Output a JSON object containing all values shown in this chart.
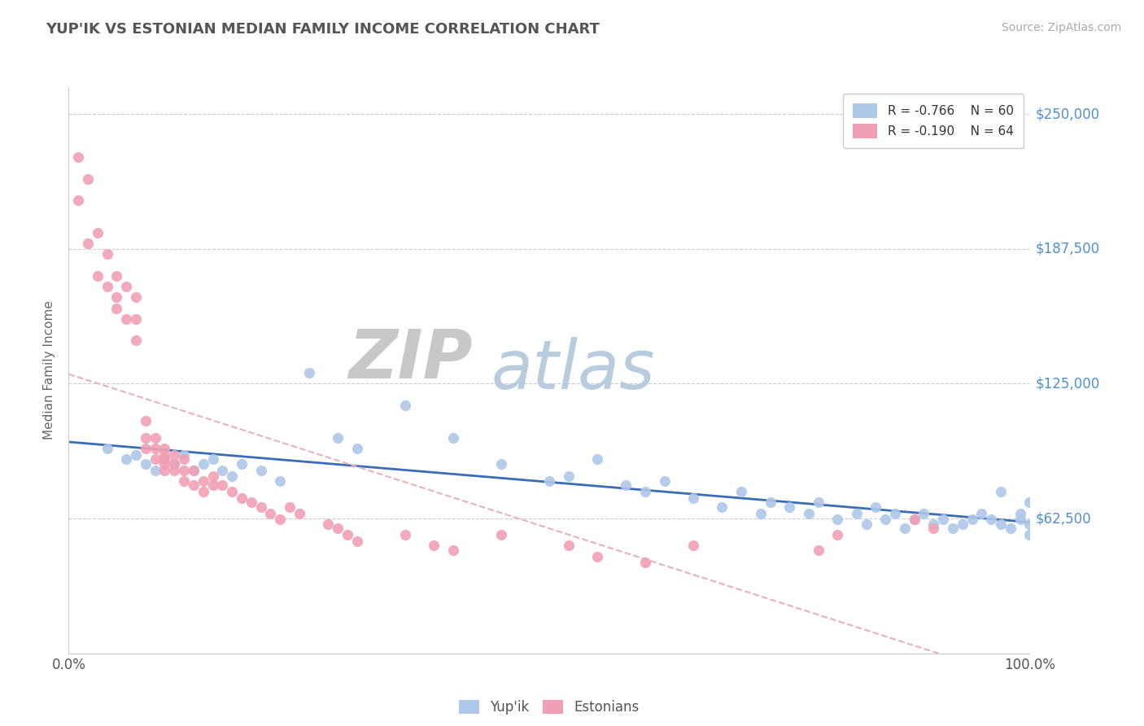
{
  "title": "YUP'IK VS ESTONIAN MEDIAN FAMILY INCOME CORRELATION CHART",
  "source": "Source: ZipAtlas.com",
  "ylabel": "Median Family Income",
  "xlim": [
    0,
    1.0
  ],
  "ylim": [
    0,
    262500
  ],
  "yticks": [
    62500,
    125000,
    187500,
    250000
  ],
  "ytick_labels": [
    "$62,500",
    "$125,000",
    "$187,500",
    "$250,000"
  ],
  "legend_r1": "R = -0.766",
  "legend_n1": "N = 60",
  "legend_r2": "R = -0.190",
  "legend_n2": "N = 64",
  "color_yupik": "#adc8e8",
  "color_estonian": "#f0a0b4",
  "color_trend_yupik": "#3a6db5",
  "color_trend_estonian": "#e8b0c0",
  "color_title": "#555555",
  "color_ytick": "#5090d0",
  "color_source": "#aaaaaa",
  "color_grid": "#cccccc",
  "watermark_zip": "#c8c8c8",
  "watermark_atlas": "#b8cce0",
  "yupik_x": [
    0.04,
    0.06,
    0.07,
    0.08,
    0.09,
    0.1,
    0.11,
    0.12,
    0.13,
    0.14,
    0.15,
    0.16,
    0.17,
    0.18,
    0.2,
    0.22,
    0.25,
    0.28,
    0.3,
    0.35,
    0.4,
    0.45,
    0.5,
    0.52,
    0.55,
    0.58,
    0.6,
    0.62,
    0.65,
    0.68,
    0.7,
    0.72,
    0.73,
    0.75,
    0.77,
    0.78,
    0.8,
    0.82,
    0.83,
    0.84,
    0.85,
    0.86,
    0.87,
    0.88,
    0.89,
    0.9,
    0.91,
    0.92,
    0.93,
    0.94,
    0.95,
    0.96,
    0.97,
    0.98,
    0.99,
    1.0,
    1.0,
    1.0,
    0.99,
    0.97
  ],
  "yupik_y": [
    95000,
    90000,
    92000,
    88000,
    85000,
    90000,
    88000,
    92000,
    85000,
    88000,
    90000,
    85000,
    82000,
    88000,
    85000,
    80000,
    130000,
    100000,
    95000,
    115000,
    100000,
    88000,
    80000,
    82000,
    90000,
    78000,
    75000,
    80000,
    72000,
    68000,
    75000,
    65000,
    70000,
    68000,
    65000,
    70000,
    62000,
    65000,
    60000,
    68000,
    62000,
    65000,
    58000,
    62000,
    65000,
    60000,
    62000,
    58000,
    60000,
    62000,
    65000,
    62000,
    60000,
    58000,
    62000,
    55000,
    60000,
    70000,
    65000,
    75000
  ],
  "estonian_x": [
    0.01,
    0.01,
    0.02,
    0.02,
    0.03,
    0.03,
    0.04,
    0.04,
    0.05,
    0.05,
    0.05,
    0.06,
    0.06,
    0.07,
    0.07,
    0.07,
    0.08,
    0.08,
    0.08,
    0.09,
    0.09,
    0.09,
    0.1,
    0.1,
    0.1,
    0.1,
    0.1,
    0.11,
    0.11,
    0.11,
    0.12,
    0.12,
    0.12,
    0.13,
    0.13,
    0.14,
    0.14,
    0.15,
    0.15,
    0.16,
    0.17,
    0.18,
    0.19,
    0.2,
    0.21,
    0.22,
    0.23,
    0.24,
    0.27,
    0.28,
    0.29,
    0.3,
    0.35,
    0.38,
    0.4,
    0.45,
    0.52,
    0.55,
    0.6,
    0.65,
    0.78,
    0.8,
    0.88,
    0.9
  ],
  "estonian_y": [
    230000,
    210000,
    190000,
    220000,
    175000,
    195000,
    170000,
    185000,
    165000,
    175000,
    160000,
    170000,
    155000,
    165000,
    155000,
    145000,
    100000,
    95000,
    108000,
    95000,
    100000,
    90000,
    95000,
    90000,
    88000,
    92000,
    85000,
    88000,
    85000,
    92000,
    85000,
    90000,
    80000,
    85000,
    78000,
    80000,
    75000,
    78000,
    82000,
    78000,
    75000,
    72000,
    70000,
    68000,
    65000,
    62000,
    68000,
    65000,
    60000,
    58000,
    55000,
    52000,
    55000,
    50000,
    48000,
    55000,
    50000,
    45000,
    42000,
    50000,
    48000,
    55000,
    62000,
    58000
  ]
}
